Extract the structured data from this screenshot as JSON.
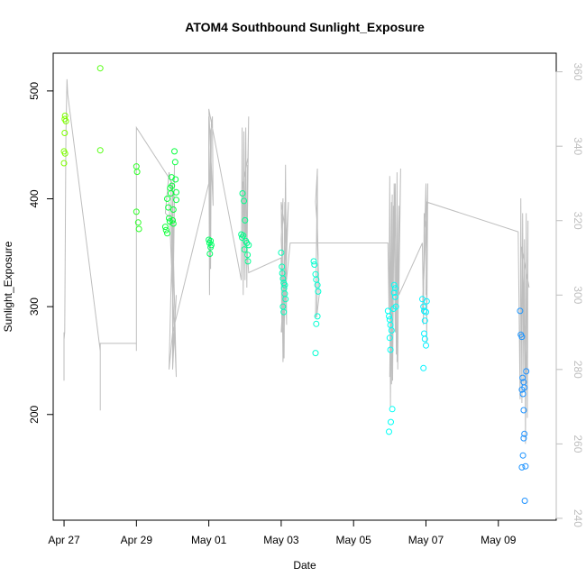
{
  "chart_data": {
    "type": "scatter",
    "title": "ATOM4 Southbound Sunlight_Exposure",
    "xlabel": "Date",
    "ylabel": "Sunlight_Exposure",
    "x_ticks": [
      "Apr 27",
      "Apr 29",
      "May 01",
      "May 03",
      "May 05",
      "May 07",
      "May 09"
    ],
    "y_ticks": [
      200,
      300,
      400,
      500
    ],
    "y2_ticks": [
      240,
      260,
      280,
      300,
      320,
      340,
      360
    ],
    "xlim": [
      -0.3,
      13.6
    ],
    "ylim": [
      102,
      535
    ],
    "y2lim": [
      239.5,
      365
    ],
    "grid": false,
    "legend": "none",
    "colors": {
      "secondary_axis": "#bebebe",
      "line": "#bebebe",
      "point_gradient": [
        "#7fff00",
        "#00ff40",
        "#00ffc8",
        "#00ffff",
        "#1e90ff"
      ]
    },
    "series": [
      {
        "role": "points",
        "points": [
          [
            0.03,
            477
          ],
          [
            0.02,
            474
          ],
          [
            0.05,
            472
          ],
          [
            0.02,
            461
          ],
          [
            0.0,
            444
          ],
          [
            0.03,
            442
          ],
          [
            0.0,
            433
          ],
          [
            1.0,
            521
          ],
          [
            1.0,
            445
          ],
          [
            2.0,
            430
          ],
          [
            2.02,
            425
          ],
          [
            2.0,
            388
          ],
          [
            2.05,
            378
          ],
          [
            2.07,
            372
          ],
          [
            2.8,
            374
          ],
          [
            2.82,
            371
          ],
          [
            2.85,
            368
          ],
          [
            2.85,
            400
          ],
          [
            2.88,
            392
          ],
          [
            2.9,
            382
          ],
          [
            2.92,
            379
          ],
          [
            2.93,
            410
          ],
          [
            2.95,
            405
          ],
          [
            2.97,
            420
          ],
          [
            2.98,
            412
          ],
          [
            3.0,
            380
          ],
          [
            3.02,
            377
          ],
          [
            3.05,
            444
          ],
          [
            3.07,
            434
          ],
          [
            3.08,
            418
          ],
          [
            3.1,
            406
          ],
          [
            3.1,
            399
          ],
          [
            3.02,
            390
          ],
          [
            4.0,
            362
          ],
          [
            4.02,
            359
          ],
          [
            4.05,
            355
          ],
          [
            4.03,
            349
          ],
          [
            4.07,
            357
          ],
          [
            4.05,
            361
          ],
          [
            4.9,
            367
          ],
          [
            4.92,
            364
          ],
          [
            4.95,
            366
          ],
          [
            4.93,
            405
          ],
          [
            4.97,
            398
          ],
          [
            5.0,
            380
          ],
          [
            5.02,
            361
          ],
          [
            5.05,
            359
          ],
          [
            5.07,
            348
          ],
          [
            5.08,
            342
          ],
          [
            5.1,
            357
          ],
          [
            4.98,
            353
          ],
          [
            6.0,
            350
          ],
          [
            6.02,
            337
          ],
          [
            6.03,
            331
          ],
          [
            6.05,
            326
          ],
          [
            6.07,
            322
          ],
          [
            6.08,
            317
          ],
          [
            6.1,
            312
          ],
          [
            6.12,
            307
          ],
          [
            6.05,
            300
          ],
          [
            6.07,
            295
          ],
          [
            6.1,
            320
          ],
          [
            6.9,
            342
          ],
          [
            6.92,
            339
          ],
          [
            6.95,
            330
          ],
          [
            6.97,
            325
          ],
          [
            7.0,
            320
          ],
          [
            7.02,
            314
          ],
          [
            7.0,
            291
          ],
          [
            6.97,
            284
          ],
          [
            6.95,
            257
          ],
          [
            8.95,
            296
          ],
          [
            8.98,
            291
          ],
          [
            9.0,
            288
          ],
          [
            9.02,
            283
          ],
          [
            9.05,
            278
          ],
          [
            9.0,
            271
          ],
          [
            9.02,
            260
          ],
          [
            9.07,
            205
          ],
          [
            9.03,
            193
          ],
          [
            8.98,
            184
          ],
          [
            9.1,
            298
          ],
          [
            9.12,
            313
          ],
          [
            9.15,
            309
          ],
          [
            9.17,
            300
          ],
          [
            9.15,
            317
          ],
          [
            9.12,
            320
          ],
          [
            9.9,
            307
          ],
          [
            9.93,
            300
          ],
          [
            9.95,
            296
          ],
          [
            9.97,
            287
          ],
          [
            10.0,
            295
          ],
          [
            10.02,
            305
          ],
          [
            9.95,
            275
          ],
          [
            9.97,
            270
          ],
          [
            10.0,
            264
          ],
          [
            9.93,
            243
          ],
          [
            12.6,
            296
          ],
          [
            12.62,
            274
          ],
          [
            12.65,
            272
          ],
          [
            12.67,
            234
          ],
          [
            12.7,
            230
          ],
          [
            12.72,
            225
          ],
          [
            12.65,
            223
          ],
          [
            12.68,
            219
          ],
          [
            12.7,
            204
          ],
          [
            12.72,
            182
          ],
          [
            12.7,
            178
          ],
          [
            12.75,
            152
          ],
          [
            12.65,
            151
          ],
          [
            12.73,
            120
          ],
          [
            12.77,
            240
          ],
          [
            12.68,
            162
          ]
        ]
      },
      {
        "role": "lines",
        "axis": "y2",
        "points": [
          [
            0.0,
            290
          ],
          [
            0.0,
            280
          ],
          [
            0.0,
            277
          ],
          [
            0.0,
            288
          ],
          [
            0.02,
            290
          ],
          [
            0.05,
            343
          ],
          [
            0.08,
            358
          ],
          [
            0.1,
            354
          ],
          [
            1.0,
            285
          ],
          [
            1.0,
            269
          ],
          [
            1.0,
            285
          ],
          [
            1.0,
            285
          ],
          [
            1.0,
            287
          ],
          [
            2.0,
            287
          ],
          [
            2.0,
            340
          ],
          [
            2.0,
            285
          ],
          [
            2.0,
            292
          ],
          [
            2.0,
            345
          ],
          [
            3.0,
            330
          ],
          [
            3.0,
            320
          ],
          [
            2.9,
            280
          ],
          [
            3.0,
            290
          ],
          [
            3.05,
            335
          ],
          [
            3.0,
            285
          ],
          [
            3.1,
            300
          ],
          [
            3.0,
            280
          ],
          [
            3.0,
            325
          ],
          [
            3.0,
            310
          ],
          [
            2.95,
            330
          ],
          [
            3.0,
            300
          ],
          [
            2.9,
            325
          ],
          [
            3.1,
            278
          ],
          [
            3.0,
            320
          ],
          [
            2.8,
            322
          ],
          [
            2.9,
            333
          ],
          [
            3.05,
            325
          ],
          [
            3.0,
            290
          ],
          [
            4.0,
            330
          ],
          [
            4.0,
            348
          ],
          [
            4.02,
            300
          ],
          [
            4.05,
            344
          ],
          [
            4.0,
            346
          ],
          [
            4.05,
            307
          ],
          [
            4.07,
            346
          ],
          [
            4.1,
            348
          ],
          [
            4.12,
            324
          ],
          [
            4.0,
            350
          ],
          [
            4.9,
            304
          ],
          [
            4.92,
            345
          ],
          [
            4.95,
            300
          ],
          [
            4.97,
            344
          ],
          [
            5.0,
            304
          ],
          [
            5.02,
            345
          ],
          [
            5.05,
            302
          ],
          [
            5.07,
            335
          ],
          [
            5.05,
            307
          ],
          [
            5.1,
            348
          ],
          [
            5.08,
            337
          ],
          [
            4.95,
            330
          ],
          [
            5.1,
            306
          ],
          [
            6.0,
            310
          ],
          [
            6.02,
            290
          ],
          [
            6.05,
            326
          ],
          [
            6.0,
            315
          ],
          [
            6.07,
            300
          ],
          [
            6.05,
            287
          ],
          [
            6.1,
            325
          ],
          [
            6.08,
            283
          ],
          [
            6.12,
            335
          ],
          [
            6.15,
            292
          ],
          [
            6.1,
            312
          ],
          [
            6.12,
            317
          ],
          [
            6.0,
            325
          ],
          [
            6.05,
            282
          ],
          [
            6.2,
            325
          ],
          [
            6.0,
            290
          ],
          [
            6.25,
            314
          ],
          [
            7.0,
            314
          ],
          [
            7.0,
            332
          ],
          [
            6.95,
            294
          ],
          [
            7.0,
            334
          ],
          [
            6.95,
            325
          ],
          [
            7.0,
            318
          ],
          [
            7.02,
            310
          ],
          [
            6.98,
            294
          ],
          [
            7.05,
            300
          ],
          [
            7.0,
            314
          ],
          [
            8.95,
            314
          ],
          [
            8.98,
            296
          ],
          [
            9.0,
            332
          ],
          [
            9.02,
            270
          ],
          [
            9.05,
            325
          ],
          [
            9.0,
            278
          ],
          [
            9.07,
            327
          ],
          [
            9.05,
            276
          ],
          [
            9.1,
            324
          ],
          [
            9.08,
            277
          ],
          [
            9.12,
            330
          ],
          [
            9.15,
            290
          ],
          [
            9.13,
            313
          ],
          [
            9.15,
            330
          ],
          [
            9.18,
            284
          ],
          [
            9.2,
            333
          ],
          [
            9.22,
            280
          ],
          [
            9.25,
            324
          ],
          [
            9.2,
            282
          ],
          [
            9.3,
            334
          ],
          [
            9.25,
            300
          ],
          [
            9.9,
            314
          ],
          [
            9.93,
            292
          ],
          [
            9.95,
            322
          ],
          [
            10.0,
            318
          ],
          [
            9.9,
            295
          ],
          [
            10.0,
            330
          ],
          [
            10.02,
            287
          ],
          [
            10.05,
            330
          ],
          [
            10.02,
            316
          ],
          [
            10.0,
            300
          ],
          [
            10.02,
            325
          ],
          [
            12.55,
            317
          ],
          [
            12.6,
            272
          ],
          [
            12.62,
            326
          ],
          [
            12.65,
            271
          ],
          [
            12.67,
            322
          ],
          [
            12.7,
            276
          ],
          [
            12.72,
            315
          ],
          [
            12.75,
            260
          ],
          [
            12.77,
            322
          ],
          [
            12.8,
            267
          ],
          [
            12.82,
            320
          ],
          [
            12.8,
            275
          ],
          [
            12.65,
            313
          ],
          [
            12.85,
            302
          ]
        ]
      }
    ]
  }
}
